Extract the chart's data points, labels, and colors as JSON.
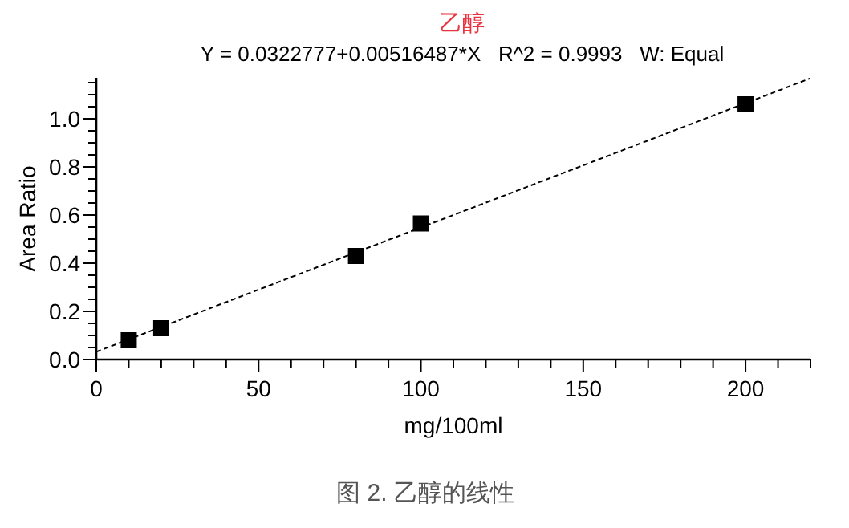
{
  "chart_data": {
    "type": "scatter",
    "title": "乙醇",
    "subtitle": "Y = 0.0322777+0.00516487*X   R^2 = 0.9993   W: Equal",
    "xlabel": "mg/100ml",
    "ylabel": "Area Ratio",
    "annotations": [
      "图 2. 乙醇的线性"
    ],
    "marker": "square",
    "grid": false,
    "xlim": [
      0,
      220
    ],
    "ylim": [
      0,
      1.17
    ],
    "xticks": [
      0,
      {
        "value": 10,
        "label": null
      },
      {
        "value": 20,
        "label": null
      },
      {
        "value": 30,
        "label": null
      },
      {
        "value": 40,
        "label": null
      },
      50,
      {
        "value": 60,
        "label": null
      },
      {
        "value": 70,
        "label": null
      },
      {
        "value": 80,
        "label": null
      },
      {
        "value": 90,
        "label": null
      },
      100,
      {
        "value": 110,
        "label": null
      },
      {
        "value": 120,
        "label": null
      },
      {
        "value": 130,
        "label": null
      },
      {
        "value": 140,
        "label": null
      },
      150,
      {
        "value": 160,
        "label": null
      },
      {
        "value": 170,
        "label": null
      },
      {
        "value": 180,
        "label": null
      },
      {
        "value": 190,
        "label": null
      },
      200,
      {
        "value": 210,
        "label": null
      },
      {
        "value": 220,
        "label": null
      }
    ],
    "yticks": [
      {
        "value": 0,
        "label": "0.0"
      },
      {
        "value": 0.05,
        "label": null
      },
      {
        "value": 0.1,
        "label": null
      },
      {
        "value": 0.15,
        "label": null
      },
      {
        "value": 0.2,
        "label": "0.2"
      },
      {
        "value": 0.25,
        "label": null
      },
      {
        "value": 0.3,
        "label": null
      },
      {
        "value": 0.35,
        "label": null
      },
      {
        "value": 0.4,
        "label": "0.4"
      },
      {
        "value": 0.45,
        "label": null
      },
      {
        "value": 0.5,
        "label": null
      },
      {
        "value": 0.55,
        "label": null
      },
      {
        "value": 0.6,
        "label": "0.6"
      },
      {
        "value": 0.65,
        "label": null
      },
      {
        "value": 0.7,
        "label": null
      },
      {
        "value": 0.75,
        "label": null
      },
      {
        "value": 0.8,
        "label": "0.8"
      },
      {
        "value": 0.85,
        "label": null
      },
      {
        "value": 0.9,
        "label": null
      },
      {
        "value": 0.95,
        "label": null
      },
      {
        "value": 1.0,
        "label": "1.0"
      },
      {
        "value": 1.05,
        "label": null
      },
      {
        "value": 1.1,
        "label": null
      },
      {
        "value": 1.15,
        "label": null
      }
    ],
    "series": [
      {
        "type": "line",
        "line_style": "dashed",
        "marker": "none",
        "color": "#000000",
        "x": [
          0,
          220
        ],
        "values": [
          0.032,
          1.168
        ]
      },
      {
        "type": "scatter",
        "color": "#000000",
        "x": [
          10,
          20,
          80,
          100,
          200
        ],
        "values": [
          0.08,
          0.13,
          0.43,
          0.565,
          1.06
        ]
      }
    ]
  }
}
